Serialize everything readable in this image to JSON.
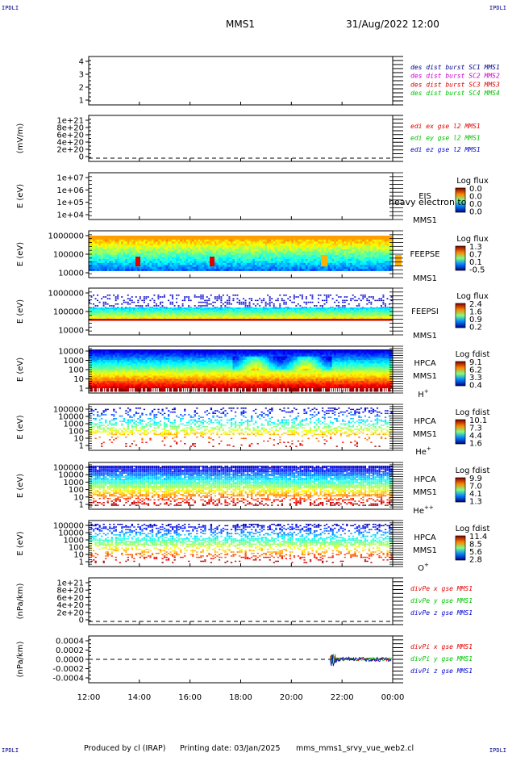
{
  "header": {
    "corner_label": "IPDLI",
    "mission": "MMS1",
    "date_time": "31/Aug/2022 12:00"
  },
  "footer": {
    "produced_by": "Produced by cl (IRAP)",
    "printing_date": "Printing date: 03/Jan/2025",
    "filename": "mms_mms1_srvy_vue_web2.cl"
  },
  "colors": {
    "dark_blue": "#00008b",
    "magenta": "#cc00cc",
    "red": "#e00000",
    "green": "#00c000",
    "blue": "#0000cc"
  },
  "chart_data": [
    {
      "type": "line",
      "name": "des-dist-burst",
      "ylim": [
        1,
        4
      ],
      "ytick_labels": [
        "4",
        "3",
        "2",
        "1"
      ],
      "ylabel": "",
      "legend": [
        {
          "text": "des dist burst SC1 MMS1",
          "color": "#00008b"
        },
        {
          "text": "des dist burst SC2 MMS2",
          "color": "#cc00cc"
        },
        {
          "text": "des dist burst SC3 MMS3",
          "color": "#e00000"
        },
        {
          "text": "des dist burst SC4 MMS4",
          "color": "#00c000"
        }
      ]
    },
    {
      "type": "line",
      "name": "edi-e-field",
      "ylim": [
        0,
        1e+21
      ],
      "ytick_labels": [
        "1e+21",
        "8e+20",
        "6e+20",
        "4e+20",
        "2e+20",
        "0"
      ],
      "ylabel": "(mV/m)",
      "zero_line": true,
      "legend": [
        {
          "text": "edi ex gse l2 MMS1",
          "color": "#e00000"
        },
        {
          "text": "edi ey gse l2 MMS1",
          "color": "#00c000"
        },
        {
          "text": "edi ez gse l2 MMS1",
          "color": "#0000cc"
        }
      ]
    },
    {
      "type": "heatmap",
      "name": "eis",
      "ylog": true,
      "ylim": [
        10000,
        10000000
      ],
      "ytick_labels": [
        "1e+07",
        "1e+06",
        "1e+05",
        "1e+04"
      ],
      "ylabel": "E (eV)",
      "right_labels": [
        "EIS",
        "MMS1"
      ],
      "overlay_text": "heavy electron to",
      "colorbar": {
        "title": "Log flux",
        "ticks": [
          "0.0",
          "0.0",
          "0.0",
          "0.0"
        ]
      }
    },
    {
      "type": "heatmap",
      "name": "feeps-electron",
      "ylog": true,
      "ylim": [
        10000,
        1000000
      ],
      "ytick_labels": [
        "1000000",
        "100000",
        "10000"
      ],
      "ylabel": "E (eV)",
      "right_labels": [
        "FEEPSE",
        "MMS1"
      ],
      "colorbar": {
        "title": "Log flux",
        "ticks": [
          "1.3",
          "0.7",
          "0.1",
          "-0.5"
        ]
      }
    },
    {
      "type": "heatmap",
      "name": "feeps-ion",
      "ylog": true,
      "ylim": [
        10000,
        1000000
      ],
      "ytick_labels": [
        "1000000",
        "100000",
        "10000"
      ],
      "ylabel": "E (eV)",
      "right_labels": [
        "FEEPSI",
        "MMS1"
      ],
      "colorbar": {
        "title": "Log flux",
        "ticks": [
          "2.4",
          "1.6",
          "0.9",
          "0.2"
        ]
      }
    },
    {
      "type": "heatmap",
      "name": "hpca-h",
      "ylog": true,
      "ylim": [
        1,
        10000
      ],
      "ytick_labels": [
        "10000",
        "1000",
        "100",
        "10",
        "1"
      ],
      "ylabel": "E (eV)",
      "right_labels": [
        "HPCA",
        "MMS1",
        "H+"
      ],
      "colorbar": {
        "title": "Log fdist",
        "ticks": [
          "9.1",
          "6.2",
          "3.3",
          "0.4"
        ]
      }
    },
    {
      "type": "heatmap",
      "name": "hpca-he",
      "ylog": true,
      "ylim": [
        1,
        100000
      ],
      "ytick_labels": [
        "100000",
        "10000",
        "1000",
        "100",
        "10",
        "1"
      ],
      "ylabel": "E (eV)",
      "right_labels": [
        "HPCA",
        "MMS1",
        "He+"
      ],
      "colorbar": {
        "title": "Log fdist",
        "ticks": [
          "10.1",
          "7.3",
          "4.4",
          "1.6"
        ]
      }
    },
    {
      "type": "heatmap",
      "name": "hpca-he2",
      "ylog": true,
      "ylim": [
        1,
        100000
      ],
      "ytick_labels": [
        "100000",
        "10000",
        "1000",
        "100",
        "10",
        "1"
      ],
      "ylabel": "E (eV)",
      "right_labels": [
        "HPCA",
        "MMS1",
        "He++"
      ],
      "colorbar": {
        "title": "Log fdist",
        "ticks": [
          "9.9",
          "7.0",
          "4.1",
          "1.3"
        ]
      }
    },
    {
      "type": "heatmap",
      "name": "hpca-o",
      "ylog": true,
      "ylim": [
        1,
        100000
      ],
      "ytick_labels": [
        "100000",
        "10000",
        "1000",
        "100",
        "10",
        "1"
      ],
      "ylabel": "E (eV)",
      "right_labels": [
        "HPCA",
        "MMS1",
        "O+"
      ],
      "colorbar": {
        "title": "Log fdist",
        "ticks": [
          "11.4",
          "8.5",
          "5.6",
          "2.8"
        ]
      }
    },
    {
      "type": "line",
      "name": "divpe",
      "ylim": [
        0,
        1e+21
      ],
      "ytick_labels": [
        "1e+21",
        "8e+20",
        "6e+20",
        "4e+20",
        "2e+20",
        "0"
      ],
      "ylabel": "(nPa/km)",
      "zero_line": true,
      "legend": [
        {
          "text": "divPe x gse MMS1",
          "color": "#e00000"
        },
        {
          "text": "divPe y gse MMS1",
          "color": "#00c000"
        },
        {
          "text": "divPe z gse MMS1",
          "color": "#0000cc"
        }
      ]
    },
    {
      "type": "line",
      "name": "divpi",
      "ylim": [
        -0.0004,
        0.0004
      ],
      "ytick_labels": [
        "0.0004",
        "0.0002",
        "0.0000",
        "-0.0002",
        "-0.0004"
      ],
      "ylabel": "(nPa/km)",
      "zero_line": true,
      "legend": [
        {
          "text": "divPi x gse MMS1",
          "color": "#e00000"
        },
        {
          "text": "divPi y gse MMS1",
          "color": "#00c000"
        },
        {
          "text": "divPi z gse MMS1",
          "color": "#0000cc"
        }
      ]
    }
  ],
  "time_axis": {
    "tick_labels": [
      "12:00",
      "14:00",
      "16:00",
      "18:00",
      "20:00",
      "22:00",
      "00:00"
    ]
  }
}
